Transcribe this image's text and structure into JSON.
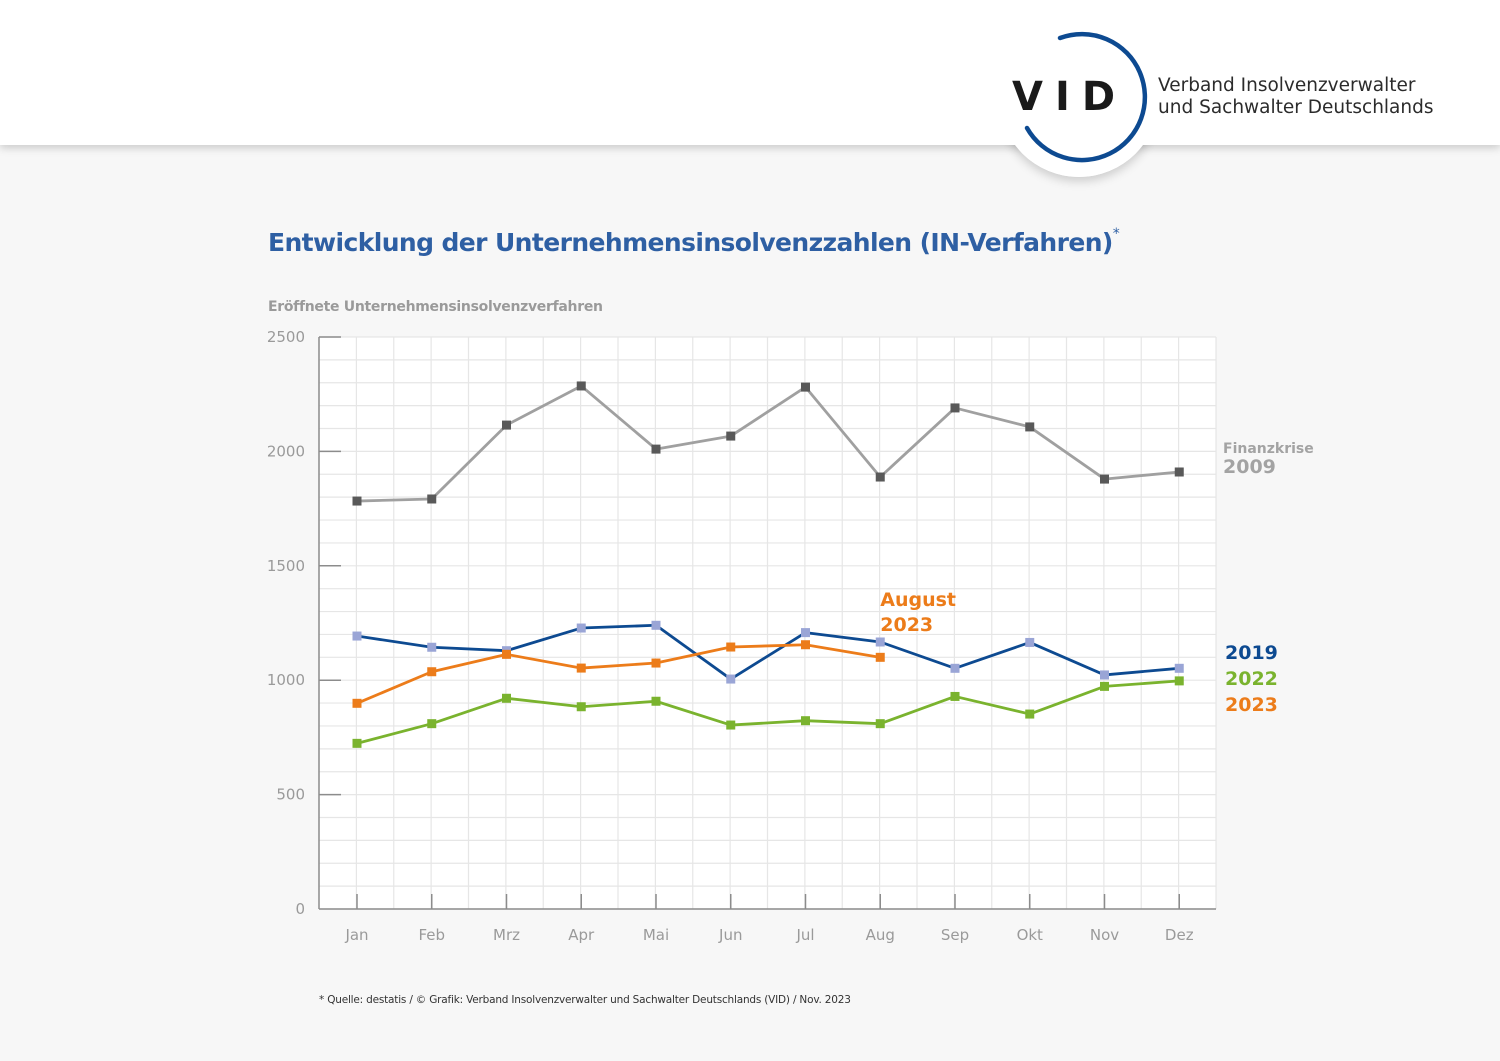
{
  "header": {
    "logo_text": "VID",
    "org_name_line1": "Verband Insolvenzverwalter",
    "org_name_line2": "und Sachwalter Deutschlands",
    "logo_arc_color": "#0d4a91"
  },
  "title": "Entwicklung der Unternehmensinsolvenzzahlen (IN-Verfahren)",
  "title_marker": "*",
  "footnote": "* Quelle: destatis / © Grafik: Verband Insolvenzverwalter und Sachwalter Deutschlands (VID) / Nov. 2023",
  "chart_data": {
    "type": "line",
    "title": "Entwicklung der Unternehmensinsolvenzzahlen (IN-Verfahren)*",
    "ylabel": "Eröffnete Unternehmensinsolvenzverfahren",
    "xlabel": "",
    "categories": [
      "Jan",
      "Feb",
      "Mrz",
      "Apr",
      "Mai",
      "Jun",
      "Jul",
      "Aug",
      "Sep",
      "Okt",
      "Nov",
      "Dez"
    ],
    "ylim": [
      0,
      2500
    ],
    "yticks": [
      "0",
      "500",
      "1000",
      "1500",
      "2000",
      "2500"
    ],
    "ytick_values": [
      0,
      500,
      1000,
      1500,
      2000,
      2500
    ],
    "grid": true,
    "minor_grid_step": 100,
    "series": [
      {
        "name": "Finanzkrise 2009",
        "label_line1": "Finanzkrise",
        "label_line2": "2009",
        "line_color": "#a0a0a0",
        "marker_color": "#595959",
        "label_color": "#a3a3a3",
        "values": [
          1783,
          1792,
          2115,
          2286,
          2010,
          2067,
          2281,
          1888,
          2190,
          2107,
          1879,
          1910
        ]
      },
      {
        "name": "2019",
        "label_line1": "2019",
        "line_color": "#0d4a91",
        "marker_color": "#9aa5d6",
        "label_color": "#0d4a91",
        "values": [
          1193,
          1144,
          1129,
          1228,
          1240,
          1005,
          1208,
          1167,
          1052,
          1165,
          1023,
          1052
        ]
      },
      {
        "name": "2022",
        "label_line1": "2022",
        "line_color": "#7ab32e",
        "marker_color": "#7ab32e",
        "label_color": "#7ab32e",
        "values": [
          724,
          810,
          921,
          884,
          908,
          804,
          823,
          810,
          929,
          852,
          973,
          997
        ]
      },
      {
        "name": "2023",
        "label_line1": "2023",
        "line_color": "#ec7c1a",
        "marker_color": "#ec7c1a",
        "label_color": "#ec7c1a",
        "values": [
          899,
          1037,
          1113,
          1053,
          1075,
          1145,
          1155,
          1100,
          null,
          null,
          null,
          null
        ]
      }
    ],
    "annotations": [
      {
        "text_line1": "August",
        "text_line2": "2023",
        "color": "#ec7c1a",
        "anchor": "Aug"
      }
    ],
    "legend_placement": "right"
  }
}
